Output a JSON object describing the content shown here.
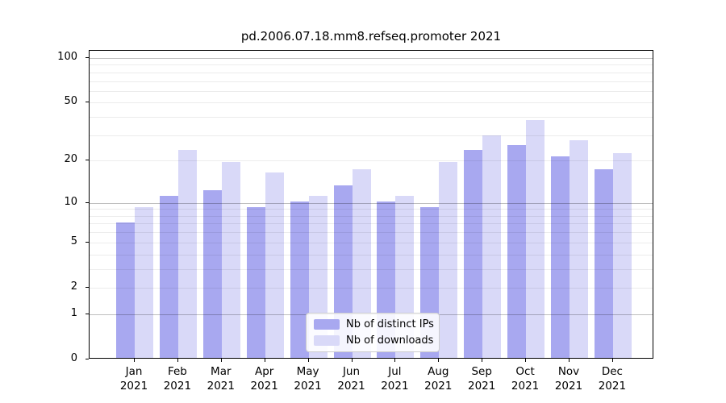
{
  "title": "pd.2006.07.18.mm8.refseq.promoter 2021",
  "chart_data": {
    "type": "bar",
    "title": "pd.2006.07.18.mm8.refseq.promoter 2021",
    "categories": [
      "Jan",
      "Feb",
      "Mar",
      "Apr",
      "May",
      "Jun",
      "Jul",
      "Aug",
      "Sep",
      "Oct",
      "Nov",
      "Dec"
    ],
    "year_label": "2021",
    "series": [
      {
        "name": "Nb of distinct IPs",
        "color": "#a8a8f0",
        "values": [
          7,
          11,
          12,
          9,
          10,
          13,
          10,
          9,
          23,
          25,
          21,
          17
        ]
      },
      {
        "name": "Nb of downloads",
        "color": "#d9d9f8",
        "values": [
          9,
          23,
          19,
          16,
          11,
          17,
          11,
          19,
          29,
          37,
          27,
          22
        ]
      }
    ],
    "y_scale": "log10(value+1)",
    "y_ticks": [
      0,
      1,
      2,
      5,
      10,
      20,
      50,
      100
    ],
    "y_minor_gridlines": [
      2,
      3,
      4,
      5,
      6,
      7,
      8,
      9,
      20,
      30,
      40,
      50,
      60,
      70,
      80,
      90
    ],
    "y_major_gridlines": [
      1,
      10,
      100
    ],
    "ylim": [
      0,
      112
    ],
    "grid": "horizontal",
    "legend_position": "bottom-center",
    "axis_color": "#000000",
    "background_color": "#ffffff"
  }
}
